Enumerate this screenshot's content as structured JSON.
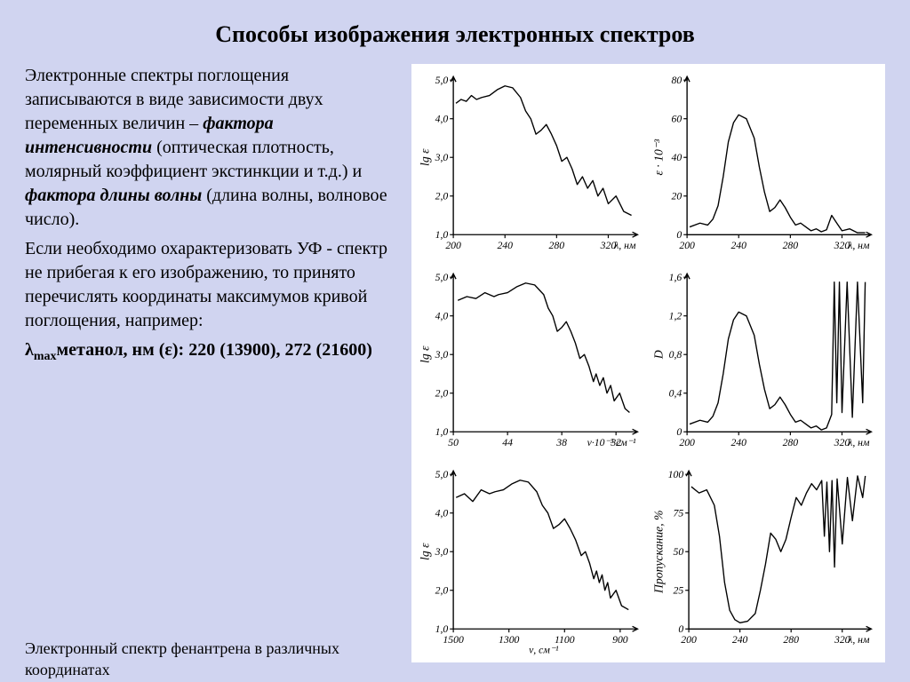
{
  "title": "Способы изображения электронных спектров",
  "text": {
    "p1a": "Электронные спектры поглощения записываются в виде зависимости двух переменных величин – ",
    "p1b": "фактора интенсивности",
    "p1c": " (оптическая плотность, молярный коэффициент экстинкции и т.д.)  и ",
    "p1d": "фактора длины волны",
    "p1e": " (длина волны, волновое число).",
    "p2": "Если необходимо охарактеризовать УФ - спектр не прибегая к его изображению, то принято перечислять координаты максимумов кривой поглощения, например:",
    "p3a": "λ",
    "p3b": "max",
    "p3c": "метанол, нм (ε): 220 (13900), 272 (21600)",
    "caption": "Электронный спектр фенантрена в различных координатах"
  },
  "chart_style": {
    "axis_color": "#000000",
    "line_color": "#000000",
    "background": "#ffffff",
    "tick_fontsize": 12,
    "ylabel_fontsize": 14,
    "line_width": 1.4
  },
  "charts": [
    {
      "id": "c11",
      "ylabel": "lg ε",
      "xlabel_right": "λ, нм",
      "xunits": "nm",
      "xlim": [
        200,
        340
      ],
      "ylim": [
        1.0,
        5.0
      ],
      "x_ticks": [
        200,
        240,
        280,
        320
      ],
      "y_ticks": [
        1.0,
        2.0,
        3.0,
        4.0,
        5.0
      ],
      "y_tick_labels": [
        "1,0",
        "2,0",
        "3,0",
        "4,0",
        "5,0"
      ],
      "data": [
        [
          202,
          4.4
        ],
        [
          206,
          4.5
        ],
        [
          210,
          4.45
        ],
        [
          214,
          4.6
        ],
        [
          218,
          4.5
        ],
        [
          222,
          4.55
        ],
        [
          228,
          4.6
        ],
        [
          234,
          4.75
        ],
        [
          240,
          4.85
        ],
        [
          246,
          4.8
        ],
        [
          252,
          4.55
        ],
        [
          256,
          4.2
        ],
        [
          260,
          4.0
        ],
        [
          264,
          3.6
        ],
        [
          268,
          3.7
        ],
        [
          272,
          3.85
        ],
        [
          276,
          3.6
        ],
        [
          280,
          3.3
        ],
        [
          284,
          2.9
        ],
        [
          288,
          3.0
        ],
        [
          292,
          2.7
        ],
        [
          296,
          2.3
        ],
        [
          300,
          2.5
        ],
        [
          304,
          2.2
        ],
        [
          308,
          2.4
        ],
        [
          312,
          2.0
        ],
        [
          316,
          2.2
        ],
        [
          320,
          1.8
        ],
        [
          326,
          2.0
        ],
        [
          332,
          1.6
        ],
        [
          338,
          1.5
        ]
      ]
    },
    {
      "id": "c12",
      "ylabel": "ε · 10⁻³",
      "xlabel_right": "λ, нм",
      "xlim": [
        200,
        340
      ],
      "ylim": [
        0,
        80
      ],
      "x_ticks": [
        200,
        240,
        280,
        320
      ],
      "y_ticks": [
        0,
        20,
        40,
        60,
        80
      ],
      "y_tick_labels": [
        "0",
        "20",
        "40",
        "60",
        "80"
      ],
      "data": [
        [
          202,
          4
        ],
        [
          210,
          6
        ],
        [
          216,
          5
        ],
        [
          220,
          8
        ],
        [
          224,
          15
        ],
        [
          228,
          30
        ],
        [
          232,
          48
        ],
        [
          236,
          58
        ],
        [
          240,
          62
        ],
        [
          246,
          60
        ],
        [
          252,
          50
        ],
        [
          256,
          35
        ],
        [
          260,
          22
        ],
        [
          264,
          12
        ],
        [
          268,
          14
        ],
        [
          272,
          18
        ],
        [
          276,
          14
        ],
        [
          280,
          9
        ],
        [
          284,
          5
        ],
        [
          288,
          6
        ],
        [
          292,
          4
        ],
        [
          296,
          2
        ],
        [
          300,
          3
        ],
        [
          304,
          1.5
        ],
        [
          308,
          2.5
        ],
        [
          312,
          10
        ],
        [
          316,
          6
        ],
        [
          320,
          2
        ],
        [
          326,
          3
        ],
        [
          332,
          1
        ],
        [
          338,
          1
        ]
      ]
    },
    {
      "id": "c21",
      "ylabel": "lg ε",
      "xlabel_right": "ν·10⁻³ см⁻¹",
      "xlim": [
        50,
        30
      ],
      "ylim": [
        1.0,
        5.0
      ],
      "x_ticks": [
        50,
        44,
        38,
        32
      ],
      "y_ticks": [
        1.0,
        2.0,
        3.0,
        4.0,
        5.0
      ],
      "y_tick_labels": [
        "1,0",
        "2,0",
        "3,0",
        "4,0",
        "5,0"
      ],
      "reversed_x": true,
      "data": [
        [
          49.5,
          4.4
        ],
        [
          48.5,
          4.5
        ],
        [
          47.5,
          4.45
        ],
        [
          46.5,
          4.6
        ],
        [
          45.5,
          4.5
        ],
        [
          45,
          4.55
        ],
        [
          44,
          4.6
        ],
        [
          43,
          4.75
        ],
        [
          42,
          4.85
        ],
        [
          41,
          4.8
        ],
        [
          40,
          4.55
        ],
        [
          39.5,
          4.2
        ],
        [
          39,
          4.0
        ],
        [
          38.5,
          3.6
        ],
        [
          38,
          3.7
        ],
        [
          37.5,
          3.85
        ],
        [
          37,
          3.6
        ],
        [
          36.5,
          3.3
        ],
        [
          36,
          2.9
        ],
        [
          35.5,
          3.0
        ],
        [
          35,
          2.7
        ],
        [
          34.5,
          2.3
        ],
        [
          34.2,
          2.5
        ],
        [
          33.8,
          2.2
        ],
        [
          33.4,
          2.4
        ],
        [
          33,
          2.0
        ],
        [
          32.6,
          2.2
        ],
        [
          32.2,
          1.8
        ],
        [
          31.6,
          2.0
        ],
        [
          31,
          1.6
        ],
        [
          30.5,
          1.5
        ]
      ]
    },
    {
      "id": "c22",
      "ylabel": "D",
      "xlabel_right": "λ, нм",
      "xlim": [
        200,
        340
      ],
      "ylim": [
        0,
        1.6
      ],
      "x_ticks": [
        200,
        240,
        280,
        320
      ],
      "y_ticks": [
        0,
        0.4,
        0.8,
        1.2,
        1.6
      ],
      "y_tick_labels": [
        "0",
        "0,4",
        "0,8",
        "1,2",
        "1,6"
      ],
      "data": [
        [
          202,
          0.08
        ],
        [
          210,
          0.12
        ],
        [
          216,
          0.1
        ],
        [
          220,
          0.16
        ],
        [
          224,
          0.3
        ],
        [
          228,
          0.6
        ],
        [
          232,
          0.96
        ],
        [
          236,
          1.16
        ],
        [
          240,
          1.24
        ],
        [
          246,
          1.2
        ],
        [
          252,
          1.0
        ],
        [
          256,
          0.7
        ],
        [
          260,
          0.44
        ],
        [
          264,
          0.24
        ],
        [
          268,
          0.28
        ],
        [
          272,
          0.36
        ],
        [
          276,
          0.28
        ],
        [
          280,
          0.18
        ],
        [
          284,
          0.1
        ],
        [
          288,
          0.12
        ],
        [
          292,
          0.08
        ],
        [
          296,
          0.04
        ],
        [
          300,
          0.06
        ],
        [
          304,
          0.02
        ],
        [
          308,
          0.04
        ],
        [
          312,
          0.18
        ],
        [
          314,
          1.55
        ],
        [
          316,
          0.3
        ],
        [
          318,
          1.55
        ],
        [
          320,
          0.2
        ],
        [
          324,
          1.55
        ],
        [
          328,
          0.15
        ],
        [
          332,
          1.55
        ],
        [
          336,
          0.3
        ],
        [
          338,
          1.55
        ]
      ]
    },
    {
      "id": "c31",
      "ylabel": "lg ε",
      "xlabel_center": "ν, см⁻¹",
      "xlim": [
        1500,
        850
      ],
      "ylim": [
        1.0,
        5.0
      ],
      "x_ticks": [
        1500,
        1300,
        1100,
        900
      ],
      "y_ticks": [
        1.0,
        2.0,
        3.0,
        4.0,
        5.0
      ],
      "y_tick_labels": [
        "1,0",
        "2,0",
        "3,0",
        "4,0",
        "5,0"
      ],
      "reversed_x": true,
      "data": [
        [
          1490,
          4.4
        ],
        [
          1460,
          4.5
        ],
        [
          1430,
          4.3
        ],
        [
          1400,
          4.6
        ],
        [
          1370,
          4.5
        ],
        [
          1350,
          4.55
        ],
        [
          1320,
          4.6
        ],
        [
          1290,
          4.75
        ],
        [
          1260,
          4.85
        ],
        [
          1230,
          4.8
        ],
        [
          1200,
          4.55
        ],
        [
          1180,
          4.2
        ],
        [
          1160,
          4.0
        ],
        [
          1140,
          3.6
        ],
        [
          1120,
          3.7
        ],
        [
          1100,
          3.85
        ],
        [
          1080,
          3.6
        ],
        [
          1060,
          3.3
        ],
        [
          1040,
          2.9
        ],
        [
          1025,
          3.0
        ],
        [
          1010,
          2.7
        ],
        [
          995,
          2.3
        ],
        [
          985,
          2.5
        ],
        [
          975,
          2.2
        ],
        [
          965,
          2.4
        ],
        [
          955,
          2.0
        ],
        [
          945,
          2.2
        ],
        [
          935,
          1.8
        ],
        [
          915,
          2.0
        ],
        [
          895,
          1.6
        ],
        [
          870,
          1.5
        ]
      ]
    },
    {
      "id": "c32",
      "ylabel": "Пропускание, %",
      "ylabel_rotate": true,
      "xlabel_right": "λ, нм",
      "xlim": [
        200,
        340
      ],
      "ylim": [
        0,
        100
      ],
      "x_ticks": [
        200,
        240,
        280,
        320
      ],
      "y_ticks": [
        0,
        25,
        50,
        75,
        100
      ],
      "y_tick_labels": [
        "0",
        "25",
        "50",
        "75",
        "100"
      ],
      "data": [
        [
          202,
          92
        ],
        [
          208,
          88
        ],
        [
          214,
          90
        ],
        [
          220,
          80
        ],
        [
          224,
          60
        ],
        [
          228,
          30
        ],
        [
          232,
          12
        ],
        [
          236,
          6
        ],
        [
          240,
          4
        ],
        [
          246,
          5
        ],
        [
          252,
          10
        ],
        [
          256,
          25
        ],
        [
          260,
          42
        ],
        [
          264,
          62
        ],
        [
          268,
          58
        ],
        [
          272,
          50
        ],
        [
          276,
          58
        ],
        [
          280,
          72
        ],
        [
          284,
          85
        ],
        [
          288,
          80
        ],
        [
          292,
          88
        ],
        [
          296,
          94
        ],
        [
          300,
          90
        ],
        [
          304,
          96
        ],
        [
          306,
          60
        ],
        [
          308,
          95
        ],
        [
          310,
          50
        ],
        [
          312,
          96
        ],
        [
          314,
          40
        ],
        [
          316,
          97
        ],
        [
          320,
          55
        ],
        [
          324,
          98
        ],
        [
          328,
          70
        ],
        [
          332,
          99
        ],
        [
          336,
          85
        ],
        [
          338,
          99
        ]
      ]
    }
  ]
}
